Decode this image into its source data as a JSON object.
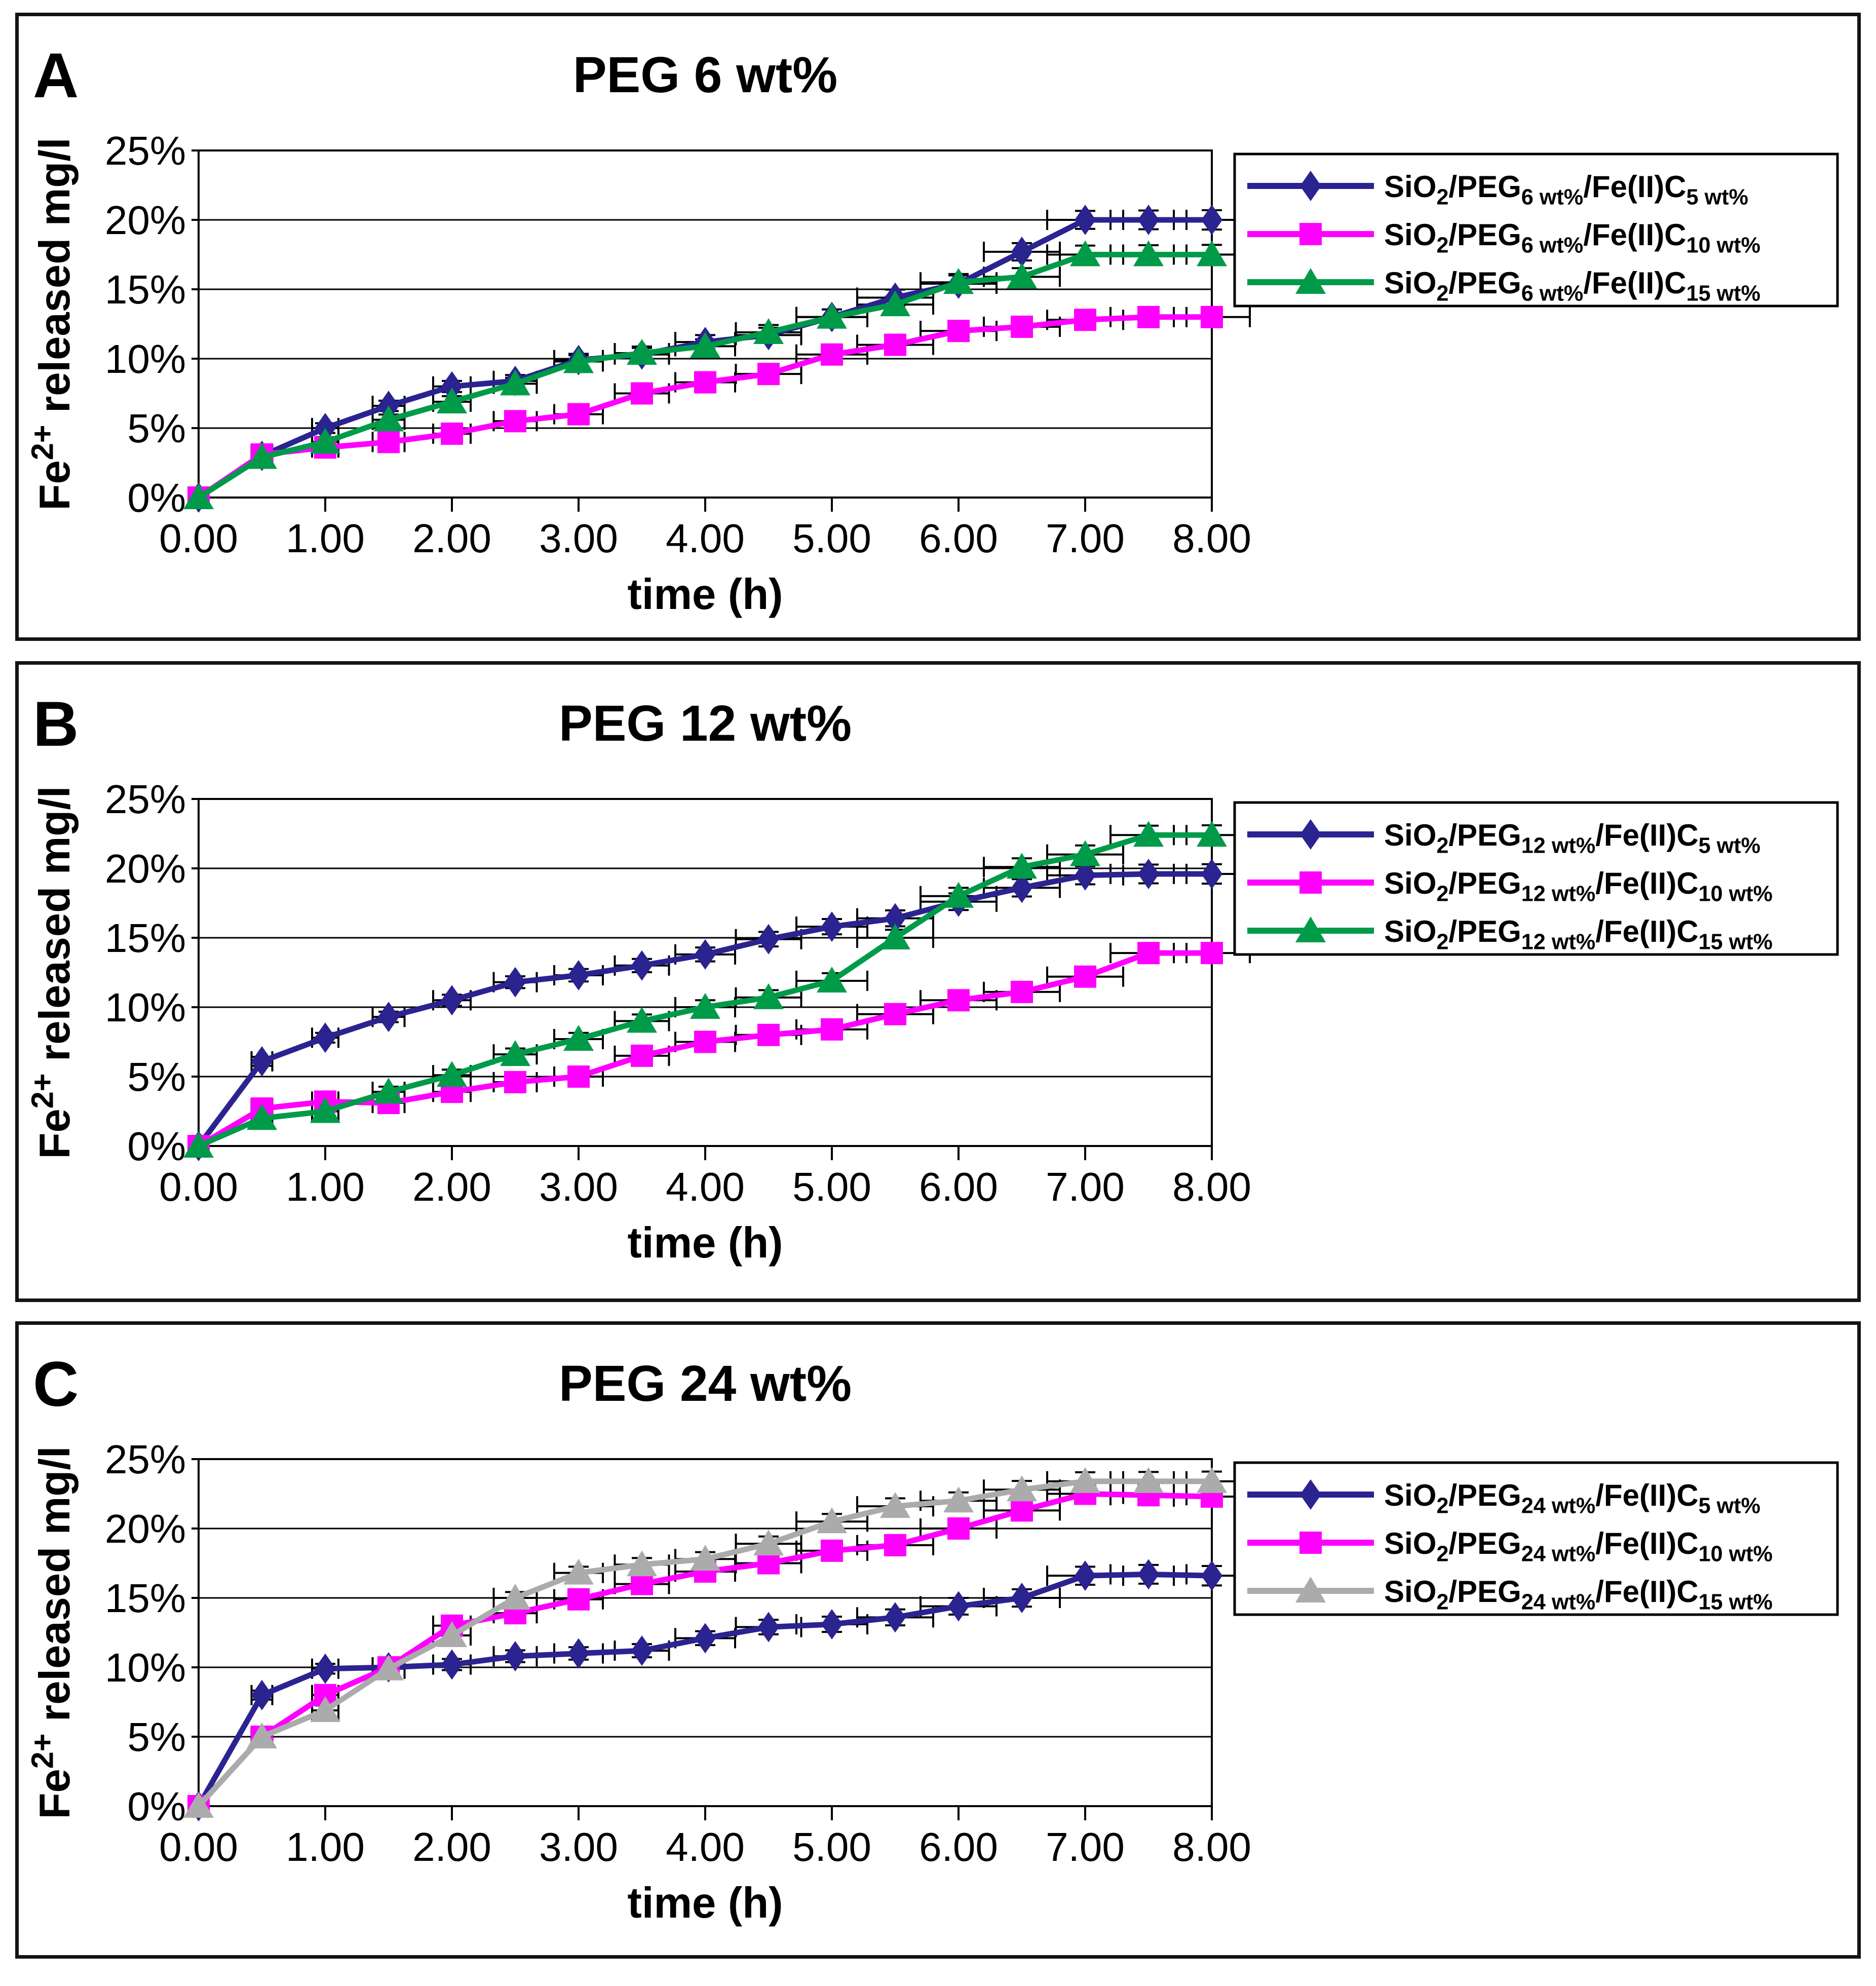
{
  "figure": {
    "background": "#ffffff",
    "border_color": "#141414",
    "error_bar_color": "#000000"
  },
  "chart_data": [
    {
      "id": "A",
      "panel_label": "A",
      "type": "line",
      "title": "PEG 6 wt%",
      "xlabel": "time (h)",
      "ylabel": "Fe2+ released mg/l",
      "ylabel_segments": [
        {
          "t": "Fe"
        },
        {
          "t": "2+",
          "sup": true
        },
        {
          "t": " released mg/l"
        }
      ],
      "xlim": [
        0,
        8
      ],
      "ylim": [
        0,
        25
      ],
      "xticks": [
        "0.00",
        "1.00",
        "2.00",
        "3.00",
        "4.00",
        "5.00",
        "6.00",
        "7.00",
        "8.00"
      ],
      "yticks": [
        "0%",
        "5%",
        "10%",
        "15%",
        "20%",
        "25%"
      ],
      "grid": "horizontal",
      "legend_position": "right",
      "x": [
        0,
        0.5,
        1,
        1.5,
        2,
        2.5,
        3,
        3.5,
        4,
        4.5,
        5,
        5.5,
        6,
        6.5,
        7,
        7.5,
        8
      ],
      "series": [
        {
          "name": "SiO2/PEG6 wt%/Fe(II)C5 wt%",
          "label_segments": [
            {
              "t": "SiO"
            },
            {
              "t": "2",
              "sub": true
            },
            {
              "t": "/PEG"
            },
            {
              "t": "6 wt%",
              "sub": true
            },
            {
              "t": "/Fe(II)C"
            },
            {
              "t": "5 wt%",
              "sub": true
            }
          ],
          "marker": "diamond",
          "color": "#2b2390",
          "values": [
            0,
            3.0,
            5.0,
            6.6,
            8.0,
            8.4,
            9.9,
            10.3,
            11.2,
            11.7,
            13.0,
            14.4,
            15.4,
            17.7,
            20.0,
            20.0,
            20.0
          ]
        },
        {
          "name": "SiO2/PEG6 wt%/Fe(II)C10 wt%",
          "label_segments": [
            {
              "t": "SiO"
            },
            {
              "t": "2",
              "sub": true
            },
            {
              "t": "/PEG"
            },
            {
              "t": "6 wt%",
              "sub": true
            },
            {
              "t": "/Fe(II)C"
            },
            {
              "t": "10 wt%",
              "sub": true
            }
          ],
          "marker": "square",
          "color": "#ff00ff",
          "values": [
            0,
            3.1,
            3.6,
            4.0,
            4.6,
            5.5,
            6.0,
            7.5,
            8.3,
            8.9,
            10.3,
            11.0,
            12.0,
            12.3,
            12.8,
            13.0,
            13.0
          ]
        },
        {
          "name": "SiO2/PEG6 wt%/Fe(II)C15 wt%",
          "label_segments": [
            {
              "t": "SiO"
            },
            {
              "t": "2",
              "sub": true
            },
            {
              "t": "/PEG"
            },
            {
              "t": "6 wt%",
              "sub": true
            },
            {
              "t": "/Fe(II)C"
            },
            {
              "t": "15 wt%",
              "sub": true
            }
          ],
          "marker": "triangle",
          "color": "#009b48",
          "values": [
            0,
            2.9,
            4.0,
            5.6,
            6.9,
            8.2,
            9.8,
            10.4,
            10.9,
            11.9,
            13.0,
            13.9,
            15.5,
            15.9,
            17.5,
            17.5,
            17.5
          ]
        }
      ]
    },
    {
      "id": "B",
      "panel_label": "B",
      "type": "line",
      "title": "PEG 12 wt%",
      "xlabel": "time (h)",
      "ylabel": "Fe2+ released mg/l",
      "ylabel_segments": [
        {
          "t": "Fe"
        },
        {
          "t": "2+",
          "sup": true
        },
        {
          "t": " released mg/l"
        }
      ],
      "xlim": [
        0,
        8
      ],
      "ylim": [
        0,
        25
      ],
      "xticks": [
        "0.00",
        "1.00",
        "2.00",
        "3.00",
        "4.00",
        "5.00",
        "6.00",
        "7.00",
        "8.00"
      ],
      "yticks": [
        "0%",
        "5%",
        "10%",
        "15%",
        "20%",
        "25%"
      ],
      "grid": "horizontal",
      "legend_position": "right",
      "x": [
        0,
        0.5,
        1,
        1.5,
        2,
        2.5,
        3,
        3.5,
        4,
        4.5,
        5,
        5.5,
        6,
        6.5,
        7,
        7.5,
        8
      ],
      "series": [
        {
          "name": "SiO2/PEG12 wt%/Fe(II)C5 wt%",
          "label_segments": [
            {
              "t": "SiO"
            },
            {
              "t": "2",
              "sub": true
            },
            {
              "t": "/PEG"
            },
            {
              "t": "12 wt%",
              "sub": true
            },
            {
              "t": "/Fe(II)C"
            },
            {
              "t": "5 wt%",
              "sub": true
            }
          ],
          "marker": "diamond",
          "color": "#2b2390",
          "values": [
            0,
            6.1,
            7.8,
            9.3,
            10.5,
            11.8,
            12.3,
            13.0,
            13.8,
            14.9,
            15.8,
            16.4,
            17.6,
            18.6,
            19.5,
            19.6,
            19.6
          ]
        },
        {
          "name": "SiO2/PEG12 wt%/Fe(II)C10 wt%",
          "label_segments": [
            {
              "t": "SiO"
            },
            {
              "t": "2",
              "sub": true
            },
            {
              "t": "/PEG"
            },
            {
              "t": "12 wt%",
              "sub": true
            },
            {
              "t": "/Fe(II)C"
            },
            {
              "t": "10 wt%",
              "sub": true
            }
          ],
          "marker": "square",
          "color": "#ff00ff",
          "values": [
            0,
            2.7,
            3.2,
            3.1,
            3.9,
            4.6,
            5.0,
            6.5,
            7.5,
            8.0,
            8.4,
            9.5,
            10.5,
            11.1,
            12.2,
            13.9,
            13.9
          ]
        },
        {
          "name": "SiO2/PEG12 wt%/Fe(II)C15 wt%",
          "label_segments": [
            {
              "t": "SiO"
            },
            {
              "t": "2",
              "sub": true
            },
            {
              "t": "/PEG"
            },
            {
              "t": "12 wt%",
              "sub": true
            },
            {
              "t": "/Fe(II)C"
            },
            {
              "t": "15 wt%",
              "sub": true
            }
          ],
          "marker": "triangle",
          "color": "#009b48",
          "values": [
            0,
            2.0,
            2.5,
            3.9,
            5.1,
            6.6,
            7.7,
            9.0,
            10.0,
            10.7,
            11.9,
            15.0,
            18.0,
            20.1,
            21.0,
            22.4,
            22.4
          ]
        }
      ]
    },
    {
      "id": "C",
      "panel_label": "C",
      "type": "line",
      "title": "PEG 24 wt%",
      "xlabel": "time (h)",
      "ylabel": "Fe2+ released mg/l",
      "ylabel_segments": [
        {
          "t": "Fe"
        },
        {
          "t": "2+",
          "sup": true
        },
        {
          "t": " released mg/l"
        }
      ],
      "xlim": [
        0,
        8
      ],
      "ylim": [
        0,
        25
      ],
      "xticks": [
        "0.00",
        "1.00",
        "2.00",
        "3.00",
        "4.00",
        "5.00",
        "6.00",
        "7.00",
        "8.00"
      ],
      "yticks": [
        "0%",
        "5%",
        "10%",
        "15%",
        "20%",
        "25%"
      ],
      "grid": "horizontal",
      "legend_position": "right",
      "x": [
        0,
        0.5,
        1,
        1.5,
        2,
        2.5,
        3,
        3.5,
        4,
        4.5,
        5,
        5.5,
        6,
        6.5,
        7,
        7.5,
        8
      ],
      "series": [
        {
          "name": "SiO2/PEG24 wt%/Fe(II)C5 wt%",
          "label_segments": [
            {
              "t": "SiO"
            },
            {
              "t": "2",
              "sub": true
            },
            {
              "t": "/PEG"
            },
            {
              "t": "24 wt%",
              "sub": true
            },
            {
              "t": "/Fe(II)C"
            },
            {
              "t": "5 wt%",
              "sub": true
            }
          ],
          "marker": "diamond",
          "color": "#2b2390",
          "values": [
            0,
            8.0,
            9.9,
            10.0,
            10.2,
            10.8,
            11.0,
            11.2,
            12.1,
            12.9,
            13.1,
            13.6,
            14.4,
            15.0,
            16.6,
            16.7,
            16.6
          ]
        },
        {
          "name": "SiO2/PEG24 wt%/Fe(II)C10 wt%",
          "label_segments": [
            {
              "t": "SiO"
            },
            {
              "t": "2",
              "sub": true
            },
            {
              "t": "/PEG"
            },
            {
              "t": "24 wt%",
              "sub": true
            },
            {
              "t": "/Fe(II)C"
            },
            {
              "t": "10 wt%",
              "sub": true
            }
          ],
          "marker": "square",
          "color": "#ff00ff",
          "values": [
            0,
            5.0,
            8.0,
            10.0,
            13.0,
            13.9,
            14.9,
            16.0,
            16.9,
            17.5,
            18.4,
            18.8,
            20.0,
            21.3,
            22.5,
            22.4,
            22.3
          ]
        },
        {
          "name": "SiO2/PEG24 wt%/Fe(II)C15 wt%",
          "label_segments": [
            {
              "t": "SiO"
            },
            {
              "t": "2",
              "sub": true
            },
            {
              "t": "/PEG"
            },
            {
              "t": "24 wt%",
              "sub": true
            },
            {
              "t": "/Fe(II)C"
            },
            {
              "t": "15 wt%",
              "sub": true
            }
          ],
          "marker": "triangle",
          "color": "#ababab",
          "values": [
            0,
            5.0,
            6.9,
            9.9,
            12.3,
            15.0,
            16.8,
            17.4,
            17.8,
            18.9,
            20.5,
            21.6,
            22.0,
            22.8,
            23.4,
            23.4,
            23.4
          ]
        }
      ]
    }
  ]
}
